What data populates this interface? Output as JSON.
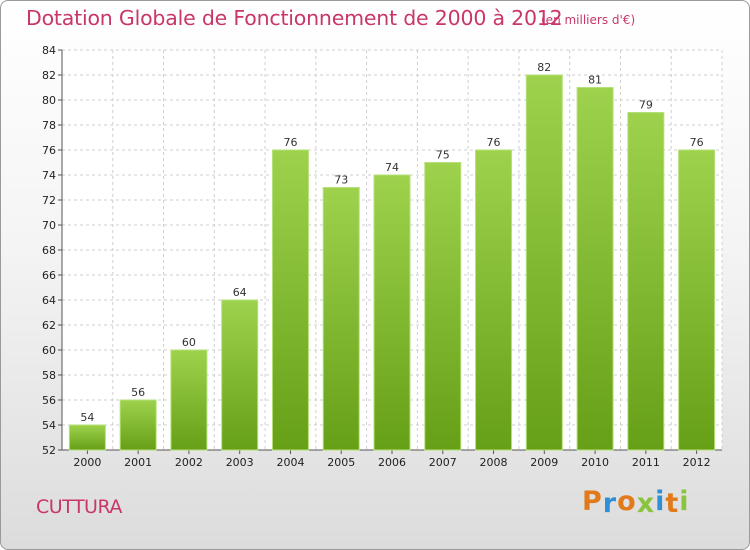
{
  "header": {
    "title": "Dotation Globale de Fonctionnement de 2000 à 2012",
    "subtitle": "(en milliers d'€)"
  },
  "footer": {
    "commune": "CUTTURA",
    "logo": [
      "P",
      "r",
      "o",
      "x",
      "i",
      "t",
      "i"
    ]
  },
  "colors": {
    "title": "#c8366a",
    "bar_light": "#9ed24d",
    "bar_dark": "#66a017",
    "logo": [
      "#e07a1a",
      "#2f8fd6",
      "#e07a1a",
      "#8ac43f",
      "#2f8fd6",
      "#e07a1a",
      "#8ac43f"
    ]
  },
  "chart_data": {
    "type": "bar",
    "categories": [
      "2000",
      "2001",
      "2002",
      "2003",
      "2004",
      "2005",
      "2006",
      "2007",
      "2008",
      "2009",
      "2010",
      "2011",
      "2012"
    ],
    "values": [
      54,
      56,
      60,
      64,
      76,
      73,
      74,
      75,
      76,
      82,
      81,
      79,
      76
    ],
    "title": "Dotation Globale de Fonctionnement de 2000 à 2012",
    "subtitle": "(en milliers d'€)",
    "ylim": [
      52,
      84
    ],
    "yticks": [
      52,
      54,
      56,
      58,
      60,
      62,
      64,
      66,
      68,
      70,
      72,
      74,
      76,
      78,
      80,
      82,
      84
    ],
    "grid": true,
    "data_labels": true
  }
}
